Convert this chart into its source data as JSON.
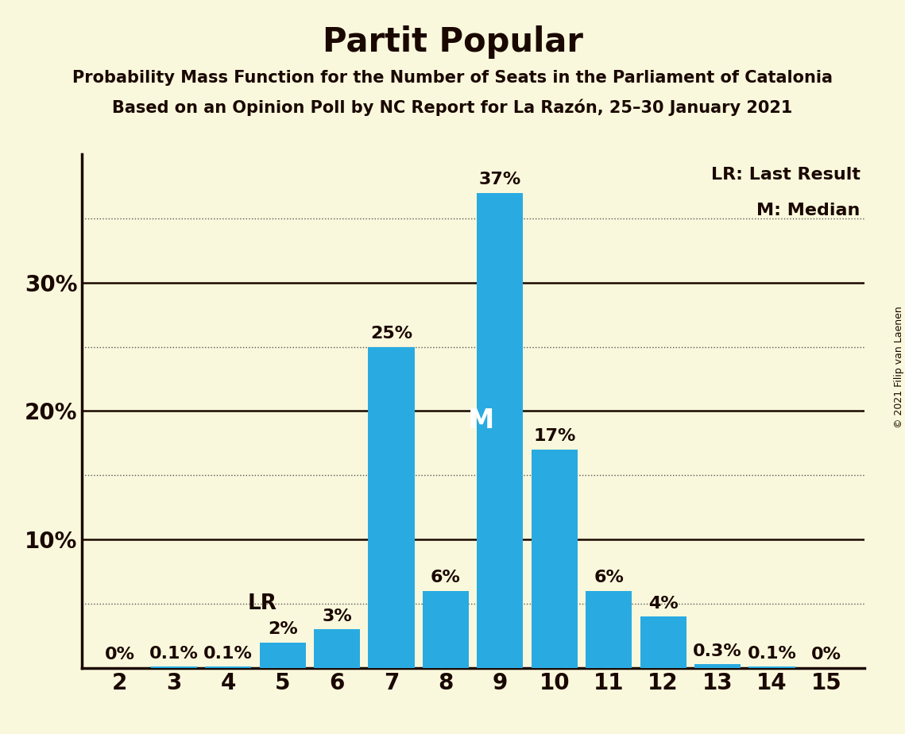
{
  "title": "Partit Popular",
  "subtitle1": "Probability Mass Function for the Number of Seats in the Parliament of Catalonia",
  "subtitle2": "Based on an Opinion Poll by NC Report for La Razón, 25–30 January 2021",
  "copyright": "© 2021 Filip van Laenen",
  "categories": [
    2,
    3,
    4,
    5,
    6,
    7,
    8,
    9,
    10,
    11,
    12,
    13,
    14,
    15
  ],
  "values": [
    0.0,
    0.1,
    0.1,
    2.0,
    3.0,
    25.0,
    6.0,
    37.0,
    17.0,
    6.0,
    4.0,
    0.3,
    0.1,
    0.0
  ],
  "labels": [
    "0%",
    "0.1%",
    "0.1%",
    "2%",
    "3%",
    "25%",
    "6%",
    "37%",
    "17%",
    "6%",
    "4%",
    "0.3%",
    "0.1%",
    "0%"
  ],
  "bar_color": "#29ABE2",
  "background_color": "#FAF8DC",
  "text_color": "#1A0800",
  "grid_color_solid": "#1A0800",
  "grid_color_dotted": "#555555",
  "lr_seat": 4,
  "median_seat": 9,
  "ylim": [
    0,
    40
  ],
  "solid_levels": [
    10,
    20,
    30
  ],
  "dotted_levels": [
    5,
    15,
    25,
    35
  ],
  "legend_lr": "LR: Last Result",
  "legend_m": "M: Median",
  "lr_label": "LR",
  "m_label": "M",
  "title_fontsize": 30,
  "subtitle_fontsize": 15,
  "tick_fontsize": 20,
  "legend_fontsize": 16,
  "bar_label_fontsize": 16,
  "m_fontsize": 24,
  "copyright_fontsize": 9
}
